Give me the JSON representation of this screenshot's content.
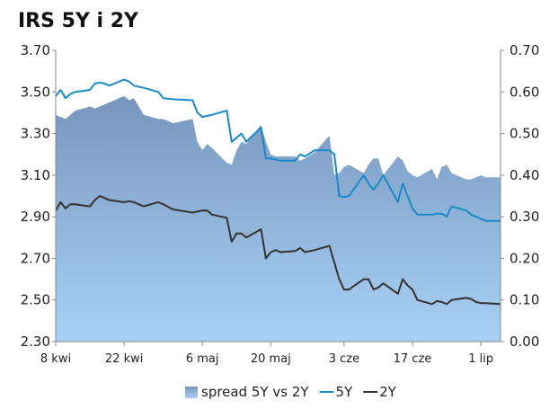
{
  "chart_data": {
    "type": "line",
    "title": "IRS 5Y i 2Y",
    "xlabel": "",
    "ylabel": "",
    "legend_position": "bottom",
    "grid": false,
    "x_ticks": [
      "8 kwi",
      "22 kwi",
      "6 maj",
      "20 maj",
      "3 cze",
      "17 cze",
      "1 lip"
    ],
    "left_axis": {
      "ylim": [
        2.3,
        3.7
      ],
      "ticks": [
        "2.30",
        "2.50",
        "2.70",
        "2.90",
        "3.10",
        "3.30",
        "3.50",
        "3.70"
      ]
    },
    "right_axis": {
      "ylim": [
        0.0,
        0.7
      ],
      "ticks": [
        "0.00",
        "0.10",
        "0.20",
        "0.30",
        "0.40",
        "0.50",
        "0.60",
        "0.70"
      ]
    },
    "x": [
      "2013-04-08",
      "2013-04-09",
      "2013-04-10",
      "2013-04-11",
      "2013-04-12",
      "2013-04-15",
      "2013-04-16",
      "2013-04-17",
      "2013-04-18",
      "2013-04-19",
      "2013-04-22",
      "2013-04-23",
      "2013-04-24",
      "2013-04-25",
      "2013-04-26",
      "2013-04-29",
      "2013-04-30",
      "2013-05-02",
      "2013-05-06",
      "2013-05-07",
      "2013-05-08",
      "2013-05-09",
      "2013-05-10",
      "2013-05-13",
      "2013-05-14",
      "2013-05-15",
      "2013-05-16",
      "2013-05-17",
      "2013-05-20",
      "2013-05-21",
      "2013-05-22",
      "2013-05-23",
      "2013-05-24",
      "2013-05-27",
      "2013-05-28",
      "2013-05-29",
      "2013-05-31",
      "2013-06-03",
      "2013-06-04",
      "2013-06-05",
      "2013-06-06",
      "2013-06-07",
      "2013-06-10",
      "2013-06-11",
      "2013-06-12",
      "2013-06-13",
      "2013-06-14",
      "2013-06-17",
      "2013-06-18",
      "2013-06-19",
      "2013-06-20",
      "2013-06-21",
      "2013-06-24",
      "2013-06-25",
      "2013-06-26",
      "2013-06-27",
      "2013-06-28",
      "2013-07-01",
      "2013-07-02",
      "2013-07-03",
      "2013-07-04",
      "2013-07-05",
      "2013-07-08"
    ],
    "series": [
      {
        "name": "spread 5Y vs 2Y",
        "type": "area",
        "axis": "right",
        "color": "#7fa9d4",
        "values": [
          0.545,
          0.54,
          0.535,
          0.545,
          0.555,
          0.565,
          0.56,
          0.565,
          0.57,
          0.575,
          0.59,
          0.58,
          0.585,
          0.565,
          0.545,
          0.535,
          0.535,
          0.525,
          0.535,
          0.48,
          0.46,
          0.475,
          0.465,
          0.43,
          0.425,
          0.46,
          0.48,
          0.475,
          0.52,
          0.48,
          0.45,
          0.445,
          0.445,
          0.445,
          0.435,
          0.44,
          0.455,
          0.495,
          0.4,
          0.405,
          0.42,
          0.425,
          0.405,
          0.425,
          0.44,
          0.44,
          0.4,
          0.445,
          0.435,
          0.41,
          0.4,
          0.395,
          0.415,
          0.39,
          0.42,
          0.425,
          0.405,
          0.39,
          0.39,
          0.395,
          0.4,
          0.395,
          0.395
        ]
      },
      {
        "name": "5Y",
        "type": "line",
        "axis": "left",
        "color": "#1a8ac6",
        "values": [
          3.48,
          3.51,
          3.47,
          3.49,
          3.5,
          3.51,
          3.54,
          3.545,
          3.54,
          3.53,
          3.56,
          3.55,
          3.53,
          3.525,
          3.52,
          3.5,
          3.47,
          3.465,
          3.46,
          3.4,
          3.38,
          3.385,
          3.39,
          3.41,
          3.26,
          3.28,
          3.3,
          3.26,
          3.33,
          3.18,
          3.18,
          3.175,
          3.17,
          3.17,
          3.2,
          3.19,
          3.22,
          3.22,
          3.2,
          3.0,
          2.995,
          3.0,
          3.1,
          3.06,
          3.03,
          3.06,
          3.1,
          2.97,
          3.06,
          3.0,
          2.94,
          2.91,
          2.91,
          2.915,
          2.915,
          2.9,
          2.95,
          2.93,
          2.91,
          2.9,
          2.89,
          2.88,
          2.88
        ]
      },
      {
        "name": "2Y",
        "type": "line",
        "axis": "left",
        "color": "#333333",
        "values": [
          2.93,
          2.97,
          2.94,
          2.96,
          2.96,
          2.95,
          2.98,
          3.0,
          2.99,
          2.98,
          2.97,
          2.975,
          2.97,
          2.96,
          2.95,
          2.97,
          2.96,
          2.935,
          2.92,
          2.925,
          2.93,
          2.93,
          2.91,
          2.895,
          2.78,
          2.82,
          2.82,
          2.8,
          2.84,
          2.7,
          2.73,
          2.74,
          2.73,
          2.735,
          2.75,
          2.73,
          2.74,
          2.76,
          2.68,
          2.6,
          2.55,
          2.55,
          2.6,
          2.6,
          2.55,
          2.56,
          2.58,
          2.53,
          2.6,
          2.57,
          2.55,
          2.5,
          2.48,
          2.495,
          2.49,
          2.48,
          2.5,
          2.51,
          2.505,
          2.49,
          2.485,
          2.485,
          2.48
        ]
      }
    ]
  }
}
